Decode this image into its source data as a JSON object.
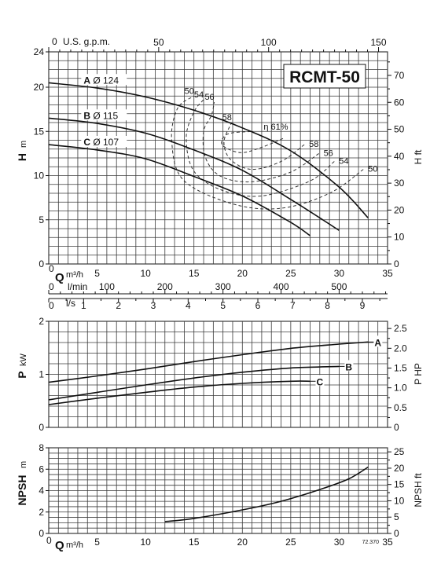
{
  "chart_data": [
    {
      "type": "line",
      "title": "RCMT-50",
      "ylabel": "H m",
      "ylabel_unit": "m",
      "ylabel_right": "H ft",
      "xlabel_top": "U.S. g.p.m.",
      "xlabel_q": "Q",
      "xlabel_q_unit": "m³/h",
      "xlabel_lmin": "l/min",
      "xlabel_ls": "l/s",
      "xlim": [
        0,
        35
      ],
      "ylim": [
        0,
        24
      ],
      "x_ticks": [
        "5",
        "10",
        "15",
        "20",
        "25",
        "30",
        "35"
      ],
      "y_ticks": [
        "0",
        "5",
        "10",
        "15",
        "20",
        "24"
      ],
      "y_ticks_right": [
        "0",
        "10",
        "20",
        "30",
        "40",
        "50",
        "60",
        "70"
      ],
      "gpm_ticks": [
        "0",
        "50",
        "100",
        "150"
      ],
      "lmin_ticks": [
        "0",
        "100",
        "200",
        "300",
        "400",
        "500"
      ],
      "ls_ticks": [
        "0",
        "1",
        "2",
        "3",
        "4",
        "5",
        "6",
        "7",
        "8",
        "9"
      ],
      "grid": true,
      "series": [
        {
          "name": "A",
          "diameter_label": "Ø 124",
          "x": [
            0,
            5,
            10,
            15,
            20,
            25,
            30,
            33
          ],
          "y": [
            20.5,
            19.9,
            18.9,
            17.4,
            15.4,
            12.8,
            8.7,
            5.2
          ]
        },
        {
          "name": "B",
          "diameter_label": "Ø 115",
          "x": [
            0,
            5,
            10,
            15,
            20,
            25,
            30
          ],
          "y": [
            16.5,
            15.9,
            14.8,
            12.9,
            10.6,
            7.3,
            3.8
          ]
        },
        {
          "name": "C",
          "diameter_label": "Ø 107",
          "x": [
            0,
            5,
            10,
            15,
            20,
            25,
            27
          ],
          "y": [
            13.5,
            12.9,
            11.9,
            9.9,
            7.7,
            4.7,
            3.2
          ]
        }
      ],
      "efficiency_label": "η 61%",
      "efficiency_contours": [
        {
          "value": "50",
          "points": [
            [
              32.5,
              10.7
            ],
            [
              29,
              8
            ],
            [
              24,
              6.3
            ],
            [
              19,
              6.8
            ],
            [
              13.9,
              9.5
            ],
            [
              12.7,
              14
            ],
            [
              13.3,
              17.6
            ],
            [
              15,
              19
            ]
          ]
        },
        {
          "value": "54",
          "points": [
            [
              29.5,
              11.6
            ],
            [
              27,
              9.4
            ],
            [
              22,
              7.7
            ],
            [
              18,
              8.3
            ],
            [
              15,
              10.5
            ],
            [
              14.2,
              14.3
            ],
            [
              15,
              17.2
            ],
            [
              16,
              18.6
            ]
          ]
        },
        {
          "value": "56",
          "points": [
            [
              27.9,
              12.5
            ],
            [
              25,
              10.4
            ],
            [
              21,
              9.3
            ],
            [
              17.8,
              9.9
            ],
            [
              16.2,
              12
            ],
            [
              16,
              15
            ],
            [
              16.8,
              16.8
            ],
            [
              17.1,
              18.3
            ]
          ]
        },
        {
          "value": "58",
          "points": [
            [
              26.4,
              13.5
            ],
            [
              24,
              11.6
            ],
            [
              21,
              10.7
            ],
            [
              18.8,
              11.8
            ],
            [
              18.1,
              13.8
            ],
            [
              18.9,
              16
            ]
          ]
        },
        {
          "value": "61",
          "points": [
            [
              24.2,
              14.2
            ],
            [
              22,
              13.2
            ],
            [
              19.8,
              12.6
            ],
            [
              17.9,
              13.5
            ],
            [
              18.5,
              14.7
            ],
            [
              21,
              15
            ]
          ]
        }
      ]
    },
    {
      "type": "line",
      "ylabel": "P",
      "ylabel_unit": "kW",
      "ylabel_right": "P HP",
      "xlim": [
        0,
        35
      ],
      "ylim": [
        0,
        2
      ],
      "y_ticks": [
        "0",
        "1",
        "2"
      ],
      "y_ticks_right": [
        "0",
        "0.5",
        "1.0",
        "1.5",
        "2.0",
        "2.5"
      ],
      "grid": true,
      "series": [
        {
          "name": "A",
          "x": [
            0,
            5,
            10,
            15,
            20,
            25,
            30,
            33
          ],
          "y": [
            0.85,
            0.97,
            1.1,
            1.24,
            1.37,
            1.49,
            1.57,
            1.61
          ]
        },
        {
          "name": "B",
          "x": [
            0,
            5,
            10,
            15,
            20,
            25,
            30
          ],
          "y": [
            0.52,
            0.66,
            0.8,
            0.93,
            1.04,
            1.12,
            1.15
          ]
        },
        {
          "name": "C",
          "x": [
            0,
            5,
            10,
            15,
            20,
            25,
            27
          ],
          "y": [
            0.43,
            0.55,
            0.66,
            0.76,
            0.83,
            0.87,
            0.87
          ]
        }
      ]
    },
    {
      "type": "line",
      "ylabel": "NPSH",
      "ylabel_unit": "m",
      "ylabel_right": "NPSH ft",
      "xlabel_q": "Q",
      "xlabel_q_unit": "m³/h",
      "xlim": [
        0,
        35
      ],
      "ylim": [
        0,
        8
      ],
      "x_ticks": [
        "0",
        "5",
        "10",
        "15",
        "20",
        "25",
        "30",
        "35"
      ],
      "y_ticks": [
        "0",
        "2",
        "4",
        "6",
        "8"
      ],
      "y_ticks_right": [
        "0",
        "5",
        "10",
        "15",
        "20",
        "25"
      ],
      "grid": true,
      "series": [
        {
          "x": [
            12,
            15,
            20,
            24,
            28,
            31,
            33
          ],
          "y": [
            1.1,
            1.4,
            2.2,
            3.0,
            4.1,
            5.1,
            6.2
          ]
        }
      ],
      "footnote": "72.370"
    }
  ],
  "colors": {
    "grid": "#3a3a3a",
    "curve": "#111111",
    "background": "#ffffff"
  }
}
